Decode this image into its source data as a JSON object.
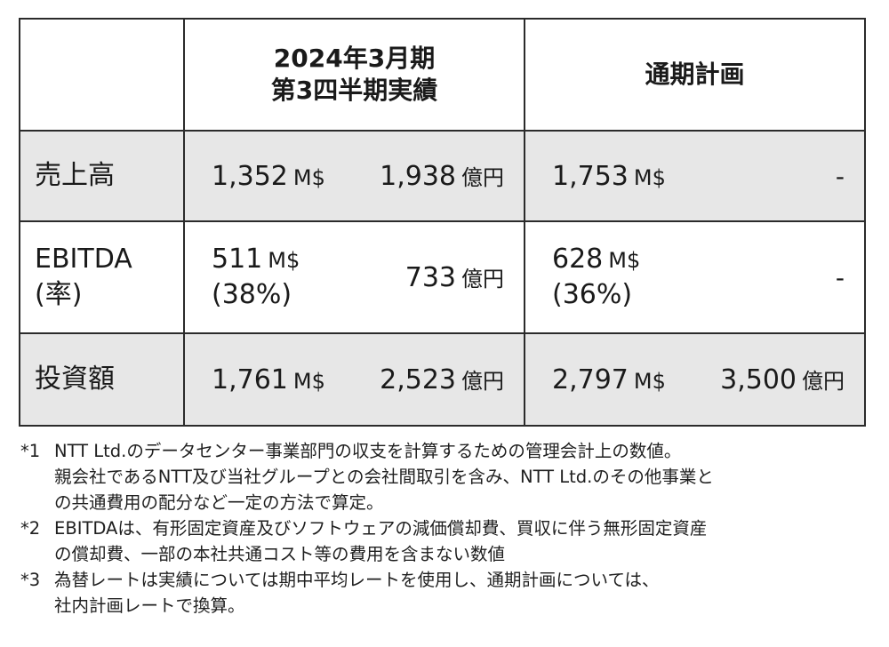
{
  "table": {
    "header": {
      "actual_line1": "2024年3月期",
      "actual_line2": "第3四半期実績",
      "plan": "通期計画"
    },
    "rows": [
      {
        "label": "売上高",
        "actual_usd": "1,352",
        "actual_usd_unit": "M$",
        "actual_jpy": "1,938",
        "actual_jpy_unit": "億円",
        "plan_usd": "1,753",
        "plan_usd_unit": "M$",
        "plan_jpy": "-"
      },
      {
        "label_line1": "EBITDA",
        "label_line2": "(率)",
        "actual_usd": "511",
        "actual_usd_unit": "M$",
        "actual_rate": "(38%)",
        "actual_jpy": "733",
        "actual_jpy_unit": "億円",
        "plan_usd": "628",
        "plan_usd_unit": "M$",
        "plan_rate": "(36%)",
        "plan_jpy": "-"
      },
      {
        "label": "投資額",
        "actual_usd": "1,761",
        "actual_usd_unit": "M$",
        "actual_jpy": "2,523",
        "actual_jpy_unit": "億円",
        "plan_usd": "2,797",
        "plan_usd_unit": "M$",
        "plan_jpy": "3,500",
        "plan_jpy_unit": "億円"
      }
    ]
  },
  "footnotes": [
    {
      "mark": "*1",
      "lines": [
        "NTT Ltd.のデータセンター事業部門の収支を計算するための管理会計上の数値。",
        "親会社であるNTT及び当社グループとの会社間取引を含み、NTT Ltd.のその他事業と",
        "の共通費用の配分など一定の方法で算定。"
      ]
    },
    {
      "mark": "*2",
      "lines": [
        "EBITDAは、有形固定資産及びソフトウェアの減価償却費、買収に伴う無形固定資産",
        "の償却費、一部の本社共通コスト等の費用を含まない数値"
      ]
    },
    {
      "mark": "*3",
      "lines": [
        "為替レートは実績については期中平均レートを使用し、通期計画については、",
        "社内計画レートで換算。"
      ]
    }
  ],
  "colors": {
    "row_shade": "#e7e7e7",
    "border": "#2b2b2b",
    "text": "#1a1a1a"
  }
}
